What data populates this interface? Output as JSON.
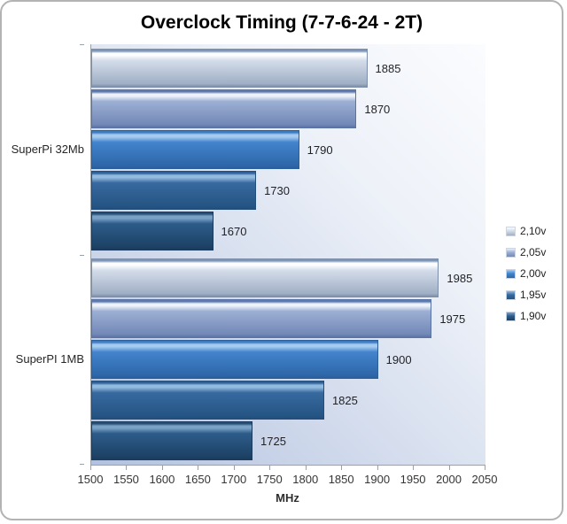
{
  "title": "Overclock Timing (7-7-6-24 - 2T)",
  "chart_data": {
    "type": "bar",
    "orientation": "horizontal",
    "title": "Overclock Timing (7-7-6-24 - 2T)",
    "xlabel": "MHz",
    "xlim": [
      1500,
      2050
    ],
    "xticks": [
      1500,
      1550,
      1600,
      1650,
      1700,
      1750,
      1800,
      1850,
      1900,
      1950,
      2000,
      2050
    ],
    "categories": [
      "SuperPi 32Mb",
      "SuperPI 1MB"
    ],
    "series": [
      {
        "name": "2,10v",
        "values": [
          1885,
          1985
        ],
        "colors": {
          "edge": "#7e95b7",
          "gloss": "#fbfdff",
          "light": "#d3dce9",
          "dark": "#a0afc5",
          "border": "#7d8ea8"
        }
      },
      {
        "name": "2,05v",
        "values": [
          1870,
          1975
        ],
        "colors": {
          "edge": "#5d79ad",
          "gloss": "#ecf1fa",
          "light": "#9cafd4",
          "dark": "#7288b6",
          "border": "#5a73a6"
        }
      },
      {
        "name": "2,00v",
        "values": [
          1790,
          1900
        ],
        "colors": {
          "edge": "#3c7ac0",
          "gloss": "#a6cbf0",
          "light": "#4384cd",
          "dark": "#2e67a9",
          "border": "#2b5f9c"
        }
      },
      {
        "name": "1,95v",
        "values": [
          1730,
          1825
        ],
        "colors": {
          "edge": "#2f6198",
          "gloss": "#93bbe0",
          "light": "#38699f",
          "dark": "#255584",
          "border": "#224e7c"
        }
      },
      {
        "name": "1,90v",
        "values": [
          1670,
          1725
        ],
        "colors": {
          "edge": "#274f76",
          "gloss": "#7ba2c6",
          "light": "#2d5c8a",
          "dark": "#1d4265",
          "border": "#1a3b5d"
        }
      }
    ],
    "value_labels": true,
    "grid": false,
    "legend_position": "right",
    "plot_bg_gradient": [
      "#b2c1de",
      "#ccd6ea",
      "#edf1f8",
      "#fbfcfe"
    ],
    "axis_color": "#9aa1a9"
  }
}
